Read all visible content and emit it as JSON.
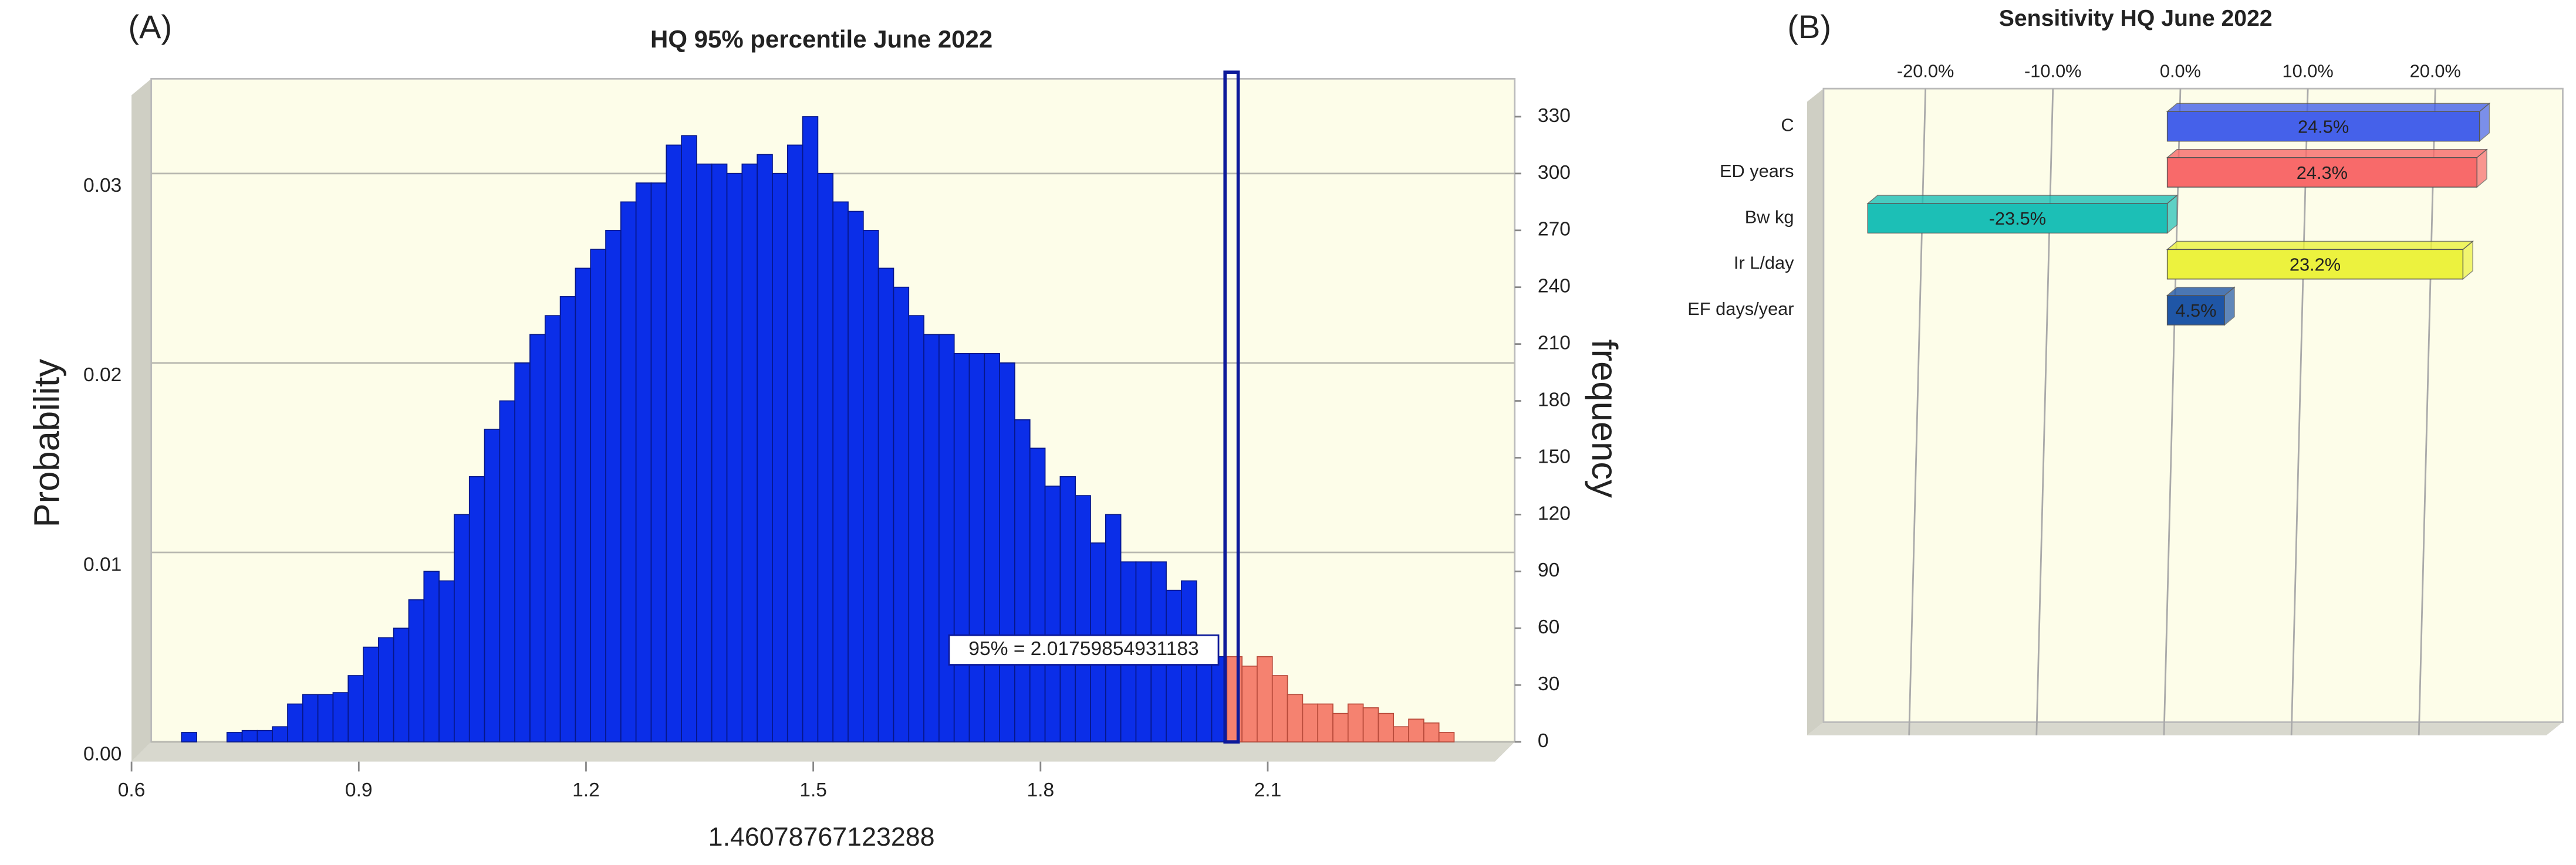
{
  "chart_data": [
    {
      "type": "histogram",
      "panel": "(A)",
      "title": "HQ 95% percentile June 2022",
      "xlabel": "1.46078767123288",
      "ylabel": "Probability",
      "y2label": "frequency",
      "bins": [
        0.62,
        0.64,
        0.66,
        0.68,
        0.7,
        0.72,
        0.74,
        0.76,
        0.78,
        0.8,
        0.82,
        0.84,
        0.86,
        0.88,
        0.9,
        0.92,
        0.94,
        0.96,
        0.98,
        1.0,
        1.02,
        1.04,
        1.06,
        1.08,
        1.1,
        1.12,
        1.14,
        1.16,
        1.18,
        1.2,
        1.22,
        1.24,
        1.26,
        1.28,
        1.3,
        1.32,
        1.34,
        1.36,
        1.38,
        1.4,
        1.42,
        1.44,
        1.46,
        1.48,
        1.5,
        1.52,
        1.54,
        1.56,
        1.58,
        1.6,
        1.62,
        1.64,
        1.66,
        1.68,
        1.7,
        1.72,
        1.74,
        1.76,
        1.78,
        1.8,
        1.82,
        1.84,
        1.86,
        1.88,
        1.9,
        1.92,
        1.94,
        1.96,
        1.98,
        2.0,
        2.02,
        2.04,
        2.06,
        2.08,
        2.1,
        2.12,
        2.14,
        2.16,
        2.18,
        2.2,
        2.22,
        2.24,
        2.26,
        2.28,
        2.3,
        2.32,
        2.34
      ],
      "counts": [
        0,
        5,
        0,
        0,
        5,
        6,
        6,
        8,
        20,
        25,
        25,
        26,
        35,
        50,
        55,
        60,
        75,
        90,
        85,
        120,
        140,
        165,
        180,
        200,
        215,
        225,
        235,
        250,
        260,
        270,
        285,
        295,
        295,
        315,
        320,
        305,
        305,
        300,
        305,
        310,
        300,
        315,
        330,
        300,
        285,
        280,
        270,
        250,
        240,
        225,
        215,
        215,
        205,
        205,
        205,
        200,
        170,
        155,
        135,
        140,
        130,
        105,
        120,
        95,
        95,
        95,
        80,
        85,
        50,
        45,
        45,
        40,
        45,
        35,
        25,
        20,
        20,
        15,
        20,
        18,
        15,
        8,
        12,
        10,
        5,
        0
      ],
      "axis": "y2",
      "color": "#0b2ee8",
      "tail_color": "#f58270",
      "percentile": 2.01759854931183,
      "percentile_label": "95% = 2.01759854931183",
      "xlim": [
        0.6,
        2.4
      ],
      "xticks": [
        0.6,
        0.9,
        1.2,
        1.5,
        1.8,
        2.1
      ],
      "ylim": [
        0,
        0.035
      ],
      "yticks": [
        {
          "value": 0,
          "label": "0.00"
        },
        0.01,
        0.02,
        0.03
      ],
      "y2lim": [
        0,
        350
      ],
      "y2ticks": [
        0,
        30,
        60,
        90,
        120,
        150,
        180,
        210,
        240,
        270,
        300,
        330
      ],
      "grid": true
    },
    {
      "type": "hbar",
      "panel": "(B)",
      "title": "Sensitivity HQ June 2022",
      "categories": [
        "C",
        "ED years",
        "Bw kg",
        "Ir L/day",
        "EF days/year"
      ],
      "values": [
        24.5,
        24.3,
        -23.5,
        23.2,
        4.5
      ],
      "value_labels": [
        "24.5%",
        "24.3%",
        "-23.5%",
        "23.2%",
        "4.5%"
      ],
      "colors": [
        "#4561ea",
        "#f86a6a",
        "#1cbfb6",
        "#ecf23e",
        "#1f56a6"
      ],
      "xlim": [
        -28,
        30
      ],
      "xticks": [
        {
          "value": -20,
          "label": "-20.0%"
        },
        {
          "value": -10,
          "label": "-10.0%"
        },
        {
          "value": 0,
          "label": "0.0%"
        },
        {
          "value": 10,
          "label": "10.0%"
        },
        {
          "value": 20,
          "label": "20.0%"
        }
      ],
      "grid": true
    }
  ]
}
